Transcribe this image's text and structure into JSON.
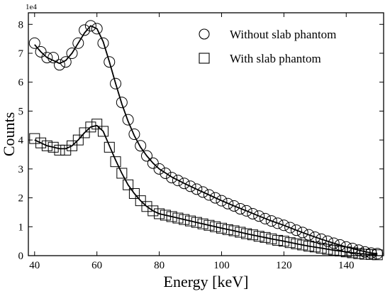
{
  "chart_data": {
    "type": "scatter",
    "title": "",
    "xlabel": "Energy [keV]",
    "ylabel": "Counts",
    "y_scale_label": "1e4",
    "xlim": [
      38,
      152
    ],
    "ylim": [
      0,
      8.4
    ],
    "y_unit_multiplier": 10000,
    "xticks": [
      40,
      60,
      80,
      100,
      120,
      140
    ],
    "yticks": [
      0,
      1,
      2,
      3,
      4,
      5,
      6,
      7,
      8
    ],
    "grid": false,
    "legend": "top-right",
    "series": [
      {
        "name": "Without slab phantom",
        "marker": "circle",
        "x": [
          40,
          42,
          44,
          46,
          48,
          50,
          52,
          54,
          56,
          58,
          60,
          62,
          64,
          66,
          68,
          70,
          72,
          74,
          76,
          78,
          80,
          82,
          84,
          86,
          88,
          90,
          92,
          94,
          96,
          98,
          100,
          102,
          104,
          106,
          108,
          110,
          112,
          114,
          116,
          118,
          120,
          122,
          124,
          126,
          128,
          130,
          132,
          134,
          136,
          138,
          140,
          142,
          144,
          146,
          148,
          150
        ],
        "y": [
          7.35,
          7.05,
          6.85,
          6.85,
          6.6,
          6.7,
          7.0,
          7.35,
          7.8,
          7.95,
          7.85,
          7.35,
          6.7,
          5.95,
          5.3,
          4.7,
          4.2,
          3.8,
          3.45,
          3.2,
          3.0,
          2.85,
          2.7,
          2.6,
          2.5,
          2.4,
          2.3,
          2.2,
          2.1,
          2.0,
          1.9,
          1.8,
          1.72,
          1.62,
          1.55,
          1.45,
          1.37,
          1.28,
          1.2,
          1.12,
          1.05,
          0.97,
          0.88,
          0.8,
          0.72,
          0.64,
          0.57,
          0.5,
          0.43,
          0.37,
          0.3,
          0.25,
          0.19,
          0.13,
          0.09,
          0.07
        ]
      },
      {
        "name": "With slab phantom",
        "marker": "square",
        "x": [
          40,
          42,
          44,
          46,
          48,
          50,
          52,
          54,
          56,
          58,
          60,
          62,
          64,
          66,
          68,
          70,
          72,
          74,
          76,
          78,
          80,
          82,
          84,
          86,
          88,
          90,
          92,
          94,
          96,
          98,
          100,
          102,
          104,
          106,
          108,
          110,
          112,
          114,
          116,
          118,
          120,
          122,
          124,
          126,
          128,
          130,
          132,
          134,
          136,
          138,
          140,
          142,
          144,
          146,
          148,
          150
        ],
        "y": [
          4.05,
          3.9,
          3.8,
          3.75,
          3.65,
          3.65,
          3.8,
          4.0,
          4.25,
          4.45,
          4.55,
          4.3,
          3.75,
          3.25,
          2.85,
          2.45,
          2.15,
          1.9,
          1.7,
          1.55,
          1.45,
          1.4,
          1.35,
          1.3,
          1.25,
          1.2,
          1.15,
          1.1,
          1.05,
          1.0,
          0.95,
          0.9,
          0.86,
          0.81,
          0.76,
          0.72,
          0.67,
          0.63,
          0.58,
          0.53,
          0.5,
          0.45,
          0.41,
          0.37,
          0.33,
          0.3,
          0.26,
          0.22,
          0.19,
          0.16,
          0.13,
          0.1,
          0.07,
          0.05,
          0.04,
          0.03
        ]
      },
      {
        "marker": "line",
        "x": [
          40,
          42,
          44,
          46,
          48,
          50,
          52,
          54,
          56,
          58,
          60,
          62,
          64,
          66,
          68,
          70,
          72,
          74,
          76,
          78,
          80,
          84,
          88,
          92,
          96,
          100,
          104,
          108,
          112,
          116,
          120,
          124,
          128,
          132,
          136,
          140,
          144,
          148,
          150
        ],
        "y": [
          7.3,
          7.05,
          6.85,
          6.75,
          6.65,
          6.75,
          7.0,
          7.35,
          7.7,
          7.95,
          7.85,
          7.4,
          6.7,
          5.95,
          5.25,
          4.65,
          4.15,
          3.75,
          3.45,
          3.2,
          3.0,
          2.72,
          2.5,
          2.3,
          2.1,
          1.9,
          1.72,
          1.55,
          1.37,
          1.2,
          1.05,
          0.88,
          0.72,
          0.57,
          0.43,
          0.3,
          0.19,
          0.09,
          0.07
        ]
      },
      {
        "marker": "line",
        "x": [
          40,
          42,
          44,
          46,
          48,
          50,
          52,
          54,
          56,
          58,
          60,
          62,
          64,
          66,
          68,
          70,
          72,
          74,
          76,
          78,
          80,
          84,
          88,
          92,
          96,
          100,
          104,
          108,
          112,
          116,
          120,
          124,
          128,
          132,
          136,
          140,
          144,
          148,
          150
        ],
        "y": [
          4.0,
          3.9,
          3.8,
          3.75,
          3.7,
          3.7,
          3.8,
          4.0,
          4.25,
          4.45,
          4.5,
          4.3,
          3.8,
          3.3,
          2.85,
          2.45,
          2.15,
          1.9,
          1.7,
          1.55,
          1.45,
          1.35,
          1.25,
          1.15,
          1.05,
          0.95,
          0.86,
          0.76,
          0.67,
          0.58,
          0.5,
          0.41,
          0.33,
          0.26,
          0.19,
          0.13,
          0.07,
          0.04,
          0.03
        ]
      }
    ]
  }
}
